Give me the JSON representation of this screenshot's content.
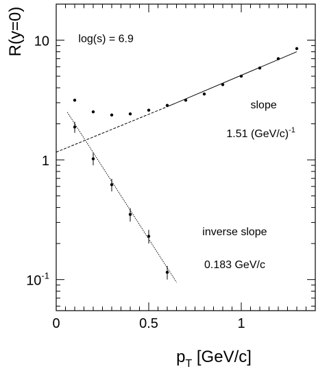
{
  "chart_data": {
    "type": "scatter",
    "xlabel": {
      "main": "p",
      "sub": "T",
      "rest": " [GeV/c]"
    },
    "ylabel": "R(y=0)",
    "xlim": [
      0,
      1.4
    ],
    "ylim": [
      0.055,
      20
    ],
    "yscale": "log",
    "x_ticks": [
      {
        "v": 0,
        "label": "0"
      },
      {
        "v": 0.5,
        "label": "0.5"
      },
      {
        "v": 1,
        "label": "1"
      }
    ],
    "y_ticks": [
      {
        "v": 0.1,
        "base": "10",
        "exp": "-1"
      },
      {
        "v": 1,
        "base": "1",
        "exp": ""
      },
      {
        "v": 10,
        "base": "10",
        "exp": ""
      }
    ],
    "series": [
      {
        "marker": "dot",
        "x": [
          0.1,
          0.2,
          0.3,
          0.4,
          0.5,
          0.6,
          0.7,
          0.8,
          0.9,
          1.0,
          1.1,
          1.2,
          1.3
        ],
        "y": [
          3.15,
          2.52,
          2.37,
          2.42,
          2.6,
          2.85,
          3.15,
          3.55,
          4.25,
          5.0,
          5.85,
          7.0,
          8.5
        ]
      },
      {
        "marker": "dot-errorbar",
        "x": [
          0.1,
          0.2,
          0.3,
          0.4,
          0.5,
          0.6
        ],
        "y": [
          1.88,
          1.02,
          0.62,
          0.35,
          0.23,
          0.115
        ],
        "yerr": [
          0.2,
          0.12,
          0.075,
          0.045,
          0.03,
          0.015
        ]
      }
    ],
    "fits": [
      {
        "style": "solid",
        "x": [
          0.6,
          1.3
        ],
        "y": [
          2.78,
          8.0
        ]
      },
      {
        "style": "dashed",
        "x": [
          0.0,
          0.6
        ],
        "y": [
          1.16,
          2.78
        ]
      },
      {
        "style": "dotted",
        "x": [
          0.06,
          0.65
        ],
        "y": [
          2.5,
          0.095
        ]
      }
    ],
    "annotations": [
      {
        "text": "log(s) = 6.9",
        "sup": "",
        "x": 0.12,
        "y": 9.6
      },
      {
        "text": "slope",
        "sup": "",
        "x": 1.05,
        "y": 2.7
      },
      {
        "text": "1.51 (GeV/c)",
        "sup": "-1",
        "x": 0.92,
        "y": 1.55
      },
      {
        "text": "inverse slope",
        "sup": "",
        "x": 0.79,
        "y": 0.235
      },
      {
        "text": "0.183 GeV/c",
        "sup": "",
        "x": 0.8,
        "y": 0.125
      }
    ]
  }
}
